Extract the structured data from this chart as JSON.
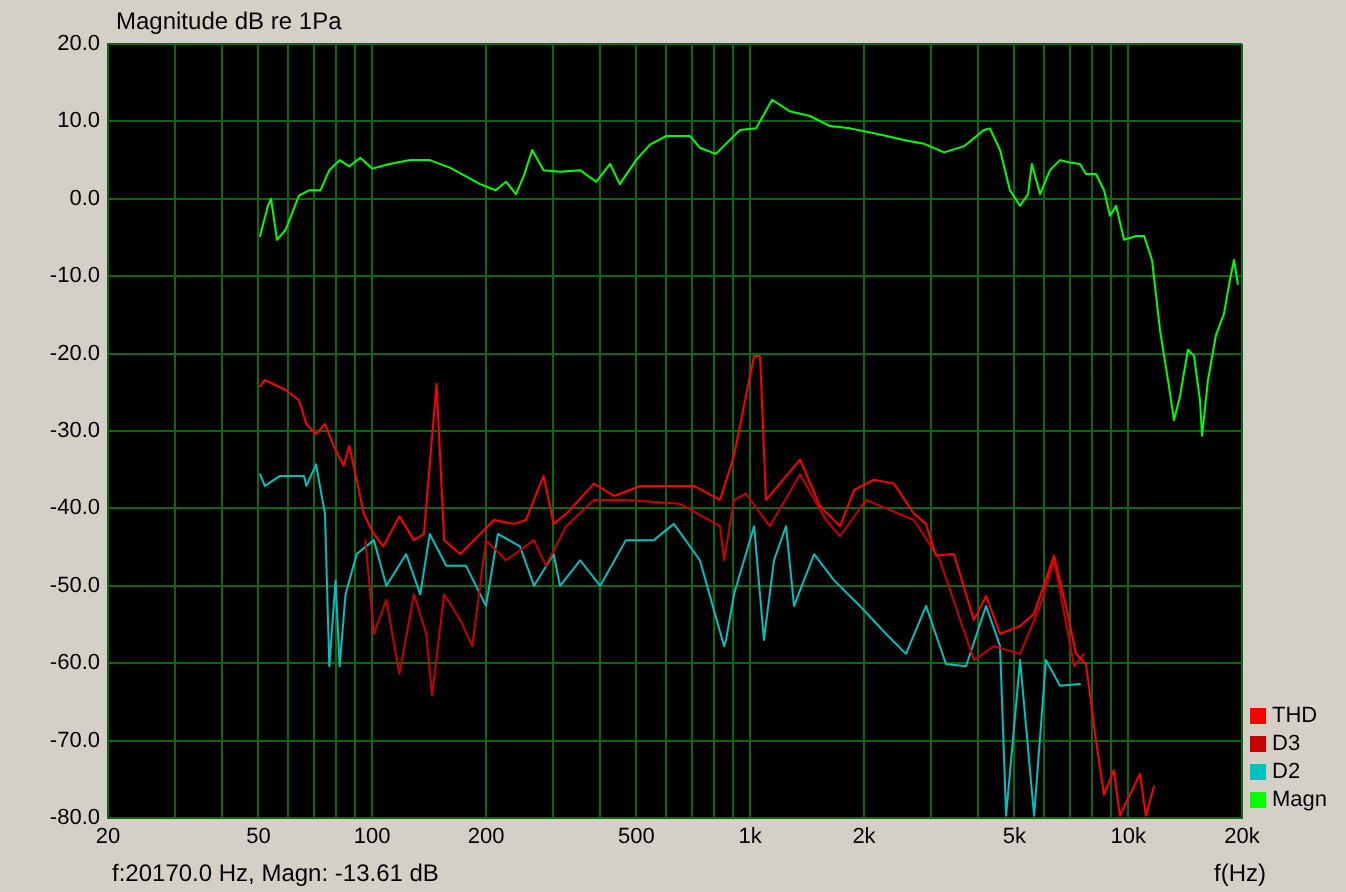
{
  "chart_data": {
    "type": "line",
    "title": "Magnitude dB re 1Pa",
    "xlabel": "f(Hz)",
    "annotations": [
      "f:20170.0 Hz, Magn: -13.61 dB"
    ],
    "log": "x",
    "grid": true,
    "legend": "bottom right",
    "xlim": [
      20,
      20000
    ],
    "ylim": [
      -80,
      20
    ],
    "xticks": [
      20,
      {
        "value": 30,
        "label": null
      },
      {
        "value": 40,
        "label": null
      },
      50,
      {
        "value": 60,
        "label": null
      },
      {
        "value": 70,
        "label": null
      },
      {
        "value": 80,
        "label": null
      },
      {
        "value": 90,
        "label": null
      },
      100,
      200,
      {
        "value": 300,
        "label": null
      },
      {
        "value": 400,
        "label": null
      },
      500,
      {
        "value": 600,
        "label": null
      },
      {
        "value": 700,
        "label": null
      },
      {
        "value": 800,
        "label": null
      },
      {
        "value": 900,
        "label": null
      },
      {
        "value": 1000,
        "label": "1k"
      },
      {
        "value": 2000,
        "label": "2k"
      },
      {
        "value": 3000,
        "label": null
      },
      {
        "value": 4000,
        "label": null
      },
      {
        "value": 5000,
        "label": "5k"
      },
      {
        "value": 6000,
        "label": null
      },
      {
        "value": 7000,
        "label": null
      },
      {
        "value": 8000,
        "label": null
      },
      {
        "value": 9000,
        "label": null
      },
      {
        "value": 10000,
        "label": "10k"
      },
      {
        "value": 20000,
        "label": "20k"
      }
    ],
    "yticks": [
      {
        "value": 20,
        "label": "20.0"
      },
      {
        "value": 10,
        "label": "10.0"
      },
      {
        "value": 0,
        "label": "0.0"
      },
      {
        "value": -10,
        "label": "-10.0"
      },
      {
        "value": -20,
        "label": "-20.0"
      },
      {
        "value": -30,
        "label": "-30.0"
      },
      {
        "value": -40,
        "label": "-40.0"
      },
      {
        "value": -50,
        "label": "-50.0"
      },
      {
        "value": -60,
        "label": "-60.0"
      },
      {
        "value": -70,
        "label": "-70.0"
      },
      {
        "value": -80,
        "label": "-80.0"
      }
    ],
    "series": [
      {
        "name": "THD",
        "color": "#ff0000",
        "x": [
          50.5,
          52,
          59,
          64,
          67,
          71,
          75,
          79,
          84,
          87,
          91,
          95,
          101,
          107,
          118,
          129,
          137,
          148,
          155,
          171,
          193,
          210,
          237,
          255,
          284,
          302,
          326,
          386,
          437,
          511,
          599,
          710,
          832,
          906,
          1024,
          1062,
          1101,
          1355,
          1531,
          1729,
          1884,
          2124,
          2400,
          2712,
          2918,
          3098,
          3459,
          3724,
          3908,
          4207,
          4581,
          5176,
          5636,
          6368,
          6842,
          7280,
          7730,
          8220,
          8630,
          9160,
          9506,
          10740,
          11140,
          11700
        ],
        "values": [
          -24.2,
          -23.4,
          -24.7,
          -26,
          -29.1,
          -30.4,
          -29.1,
          -31.9,
          -34.5,
          -31.9,
          -36.3,
          -40.7,
          -43.3,
          -44.9,
          -41,
          -44.1,
          -43.3,
          -23.9,
          -44.1,
          -45.9,
          -43.3,
          -41.5,
          -42,
          -41.5,
          -35.8,
          -42,
          -40.7,
          -36.8,
          -38.4,
          -37.1,
          -37.1,
          -37.1,
          -38.9,
          -33.2,
          -20.3,
          -20.3,
          -38.9,
          -33.7,
          -39.7,
          -42.3,
          -37.6,
          -36.3,
          -36.8,
          -40.7,
          -42,
          -46.1,
          -45.9,
          -51.1,
          -54.4,
          -51.3,
          -56.2,
          -55.2,
          -53.6,
          -46.1,
          -52.6,
          -58.8,
          -60.1,
          -70,
          -77,
          -73.8,
          -79.7,
          -74.3,
          -79.7,
          -75.9
        ]
      },
      {
        "name": "D3",
        "color": "#c80000",
        "x": [
          96,
          101,
          109,
          118,
          129,
          139,
          144,
          155,
          171,
          184,
          200,
          226,
          268,
          288,
          326,
          386,
          469,
          652,
          832,
          853,
          906,
          975,
          1127,
          1355,
          1587,
          1729,
          2024,
          2712,
          3177,
          3908,
          4416,
          5176,
          5848,
          6368,
          7195,
          7640
        ],
        "values": [
          -44.1,
          -56.2,
          -51.8,
          -61.4,
          -51.1,
          -56.2,
          -64.2,
          -51.1,
          -54.4,
          -57.8,
          -44.1,
          -46.7,
          -44.1,
          -47.4,
          -42.3,
          -38.9,
          -38.9,
          -39.4,
          -42.3,
          -46.7,
          -38.9,
          -38.1,
          -42.3,
          -35.6,
          -41.5,
          -43.6,
          -38.9,
          -41.5,
          -46.7,
          -59.6,
          -57.8,
          -58.8,
          -52.6,
          -46.7,
          -60.4,
          -58.8
        ]
      },
      {
        "name": "D2",
        "color": "#00c0c0",
        "x": [
          50.5,
          52,
          57,
          66,
          67,
          71,
          75,
          77,
          80,
          82,
          85,
          91,
          101,
          109,
          123,
          134,
          142,
          157,
          177,
          200,
          215,
          246,
          268,
          302,
          314,
          355,
          401,
          469,
          556,
          628,
          736,
          853,
          863,
          906,
          1024,
          1087,
          1156,
          1244,
          1306,
          1476,
          1667,
          1950,
          2286,
          2583,
          2918,
          3296,
          3724,
          4207,
          4581,
          4753,
          5176,
          5636,
          6058,
          6600,
          7450
        ],
        "values": [
          -35.6,
          -37.1,
          -35.8,
          -35.8,
          -37.1,
          -34.3,
          -40.7,
          -60.4,
          -49.3,
          -60.4,
          -51.1,
          -45.9,
          -44.1,
          -50,
          -45.9,
          -51.1,
          -43.3,
          -47.4,
          -47.4,
          -52.6,
          -43.3,
          -44.9,
          -50,
          -45.9,
          -50,
          -46.7,
          -50,
          -44.1,
          -44.1,
          -42,
          -46.7,
          -57.8,
          -57,
          -51.1,
          -42.3,
          -57,
          -46.7,
          -42.3,
          -52.6,
          -45.9,
          -49.3,
          -52.6,
          -56.2,
          -58.8,
          -52.6,
          -60.1,
          -60.4,
          -52.6,
          -57.8,
          -79.7,
          -59.6,
          -79.7,
          -59.6,
          -62.9,
          -62.7
        ]
      },
      {
        "name": "Magn",
        "color": "#00ff00",
        "x": [
          50.5,
          53,
          54,
          56,
          59,
          64,
          68,
          73,
          77,
          82,
          87,
          93,
          100,
          111,
          126,
          142,
          161,
          193,
          212,
          226,
          240,
          252,
          265,
          284,
          314,
          355,
          391,
          426,
          452,
          499,
          543,
          599,
          652,
          693,
          736,
          811,
          940,
          1036,
          1143,
          1273,
          1439,
          1626,
          1837,
          2204,
          2553,
          2884,
          3258,
          3681,
          4150,
          4306,
          4581,
          4865,
          5176,
          5433,
          5561,
          5848,
          6209,
          6600,
          7015,
          7450,
          7730,
          8220,
          8630,
          8950,
          9290,
          9750,
          10500,
          11020,
          11560,
          12140,
          12740,
          13220,
          13710,
          14390,
          14930,
          15490,
          15680,
          16260,
          17070,
          17910,
          18580,
          19050,
          19500
        ],
        "values": [
          -4.8,
          -0.9,
          0,
          -5.3,
          -4,
          0.4,
          1.1,
          1.1,
          3.7,
          5,
          4.2,
          5.3,
          3.9,
          4.5,
          5,
          5,
          4,
          1.9,
          1.1,
          2.2,
          0.6,
          3,
          6.3,
          3.7,
          3.5,
          3.7,
          2.2,
          4.5,
          1.9,
          5,
          7,
          8.1,
          8.1,
          8.1,
          6.6,
          5.8,
          8.9,
          9.1,
          12.8,
          11.3,
          10.7,
          9.4,
          9.1,
          8.3,
          7.6,
          7.1,
          6,
          6.8,
          8.9,
          9.1,
          6.3,
          1.1,
          -0.9,
          0.6,
          4.5,
          0.6,
          3.7,
          5,
          4.7,
          4.5,
          3.2,
          3.2,
          1.1,
          -2.2,
          -0.9,
          -5.3,
          -4.8,
          -4.8,
          -7.9,
          -17,
          -23.4,
          -28.6,
          -25.5,
          -19.5,
          -20.3,
          -26.1,
          -30.6,
          -23.4,
          -17.6,
          -14.9,
          -10.5,
          -7.9,
          -11
        ]
      }
    ]
  }
}
